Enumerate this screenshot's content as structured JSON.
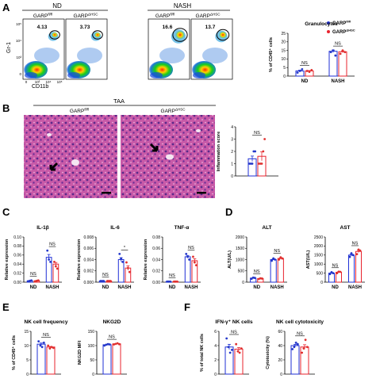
{
  "colors": {
    "blue": "#1f2fd6",
    "red": "#e8232e",
    "dot_blue": "#2438c9",
    "dot_red": "#e0312f"
  },
  "panels": {
    "A": "A",
    "B": "B",
    "C": "C",
    "D": "D",
    "E": "E",
    "F": "F"
  },
  "panelA": {
    "group_nd": "ND",
    "group_nash": "NASH",
    "col_fl": "GARP",
    "col_fl_sup": "fl/fl",
    "col_dhsc": "GARP",
    "col_dhsc_sup": "ΔHSC",
    "ylabel": "Gr-1",
    "xlabel": "CD11b",
    "yticks": [
      "10⁵",
      "10⁴",
      "10³",
      "0"
    ],
    "xticks": [
      "0",
      "10³",
      "10⁴",
      "10⁵"
    ],
    "gate_values": [
      "4.13",
      "3.73",
      "16.6",
      "13.7"
    ]
  },
  "panelB": {
    "title": "TAA",
    "col_fl": "GARP",
    "col_fl_sup": "fl/fl",
    "col_dhsc": "GARP",
    "col_dhsc_sup": "ΔHSC"
  },
  "legend": {
    "fl": "GARP",
    "fl_sup": "fl/fl",
    "dhsc": "GARP",
    "dhsc_sup": "ΔHSC"
  },
  "chart_data": [
    {
      "id": "granulocytes",
      "type": "bar",
      "title": "Granulocytes",
      "ylabel": "% of CD45⁺ cells",
      "ylim": [
        0,
        25
      ],
      "yticks": [
        0,
        5,
        10,
        15,
        20,
        25
      ],
      "categories": [
        "ND",
        "NASH"
      ],
      "series": [
        {
          "name": "GARP fl/fl",
          "values": [
            3,
            14.5
          ]
        },
        {
          "name": "GARP ΔHSC",
          "values": [
            3,
            14.2
          ]
        }
      ],
      "points": [
        [
          [
            2,
            3,
            4
          ],
          [
            3,
            2.5,
            3.5
          ]
        ],
        [
          [
            14,
            15,
            12
          ],
          [
            13,
            15,
            14
          ]
        ]
      ],
      "annotations": [
        "NS",
        "NS"
      ]
    },
    {
      "id": "inflammation",
      "type": "bar",
      "title": "",
      "ylabel": "Inflammation score",
      "ylim": [
        0,
        4
      ],
      "yticks": [
        0,
        1,
        2,
        3,
        4
      ],
      "categories": [
        ""
      ],
      "series": [
        {
          "name": "GARP fl/fl",
          "values": [
            1.4
          ]
        },
        {
          "name": "GARP ΔHSC",
          "values": [
            1.6
          ]
        }
      ],
      "points": [
        [
          [
            1,
            1,
            1,
            2,
            2
          ],
          [
            1,
            1,
            1,
            2,
            3
          ]
        ]
      ],
      "annotations": [
        "NS"
      ]
    },
    {
      "id": "il1b",
      "type": "bar",
      "title": "IL-1β",
      "ylabel": "Relative expression",
      "ylim": [
        0,
        0.1
      ],
      "yticks": [
        "0.00",
        "0.02",
        "0.04",
        "0.06",
        "0.08",
        "0.10"
      ],
      "categories": [
        "ND",
        "NASH"
      ],
      "series": [
        {
          "name": "GARP fl/fl",
          "values": [
            0.003,
            0.055
          ]
        },
        {
          "name": "GARP ΔHSC",
          "values": [
            0.003,
            0.04
          ]
        }
      ],
      "points": [
        [
          [
            0.002,
            0.003,
            0.004
          ],
          [
            0.002,
            0.003,
            0.004
          ]
        ],
        [
          [
            0.07,
            0.05,
            0.045
          ],
          [
            0.045,
            0.035,
            0.03
          ]
        ]
      ],
      "annotations": [
        "NS",
        "NS"
      ]
    },
    {
      "id": "il6",
      "type": "bar",
      "title": "IL-6",
      "ylabel": "Relative expression",
      "ylim": [
        0,
        0.008
      ],
      "yticks": [
        "0.000",
        "0.002",
        "0.004",
        "0.006",
        "0.008"
      ],
      "categories": [
        "ND",
        "NASH"
      ],
      "series": [
        {
          "name": "GARP fl/fl",
          "values": [
            0.0002,
            0.004
          ]
        },
        {
          "name": "GARP ΔHSC",
          "values": [
            0.0002,
            0.0025
          ]
        }
      ],
      "points": [
        [
          [
            0.0002,
            0.0002,
            0.0002
          ],
          [
            0.0002,
            0.0002,
            0.0002
          ]
        ],
        [
          [
            0.005,
            0.0042,
            0.0036
          ],
          [
            0.0035,
            0.0025,
            0.0018
          ]
        ]
      ],
      "annotations": [
        "NS",
        "*"
      ]
    },
    {
      "id": "tnfa",
      "type": "bar",
      "title": "TNF-α",
      "ylabel": "Relative expression",
      "ylim": [
        0,
        0.08
      ],
      "yticks": [
        "0.00",
        "0.02",
        "0.04",
        "0.06",
        "0.08"
      ],
      "categories": [
        "ND",
        "NASH"
      ],
      "series": [
        {
          "name": "GARP fl/fl",
          "values": [
            0.001,
            0.045
          ]
        },
        {
          "name": "GARP ΔHSC",
          "values": [
            0.001,
            0.038
          ]
        }
      ],
      "points": [
        [
          [
            0.001,
            0.001,
            0.001
          ],
          [
            0.001,
            0.001,
            0.001
          ]
        ],
        [
          [
            0.05,
            0.045,
            0.04
          ],
          [
            0.045,
            0.035,
            0.03
          ]
        ]
      ],
      "annotations": [
        "NS",
        "NS"
      ]
    },
    {
      "id": "alt",
      "type": "bar",
      "title": "ALT",
      "ylabel": "ALT(U/L)",
      "ylim": [
        0,
        2000
      ],
      "yticks": [
        0,
        500,
        1000,
        1500,
        2000
      ],
      "categories": [
        "ND",
        "NASH"
      ],
      "series": [
        {
          "name": "GARP fl/fl",
          "values": [
            180,
            1000
          ]
        },
        {
          "name": "GARP ΔHSC",
          "values": [
            160,
            1050
          ]
        }
      ],
      "points": [
        [
          [
            150,
            200,
            190
          ],
          [
            140,
            170,
            160
          ]
        ],
        [
          [
            950,
            1050,
            1000
          ],
          [
            1000,
            1100,
            1050
          ]
        ]
      ],
      "annotations": [
        "NS",
        "NS"
      ]
    },
    {
      "id": "ast",
      "type": "bar",
      "title": "AST",
      "ylabel": "AST(U/L)",
      "ylim": [
        0,
        2500
      ],
      "yticks": [
        0,
        500,
        1000,
        1500,
        2000,
        2500
      ],
      "categories": [
        "ND",
        "NASH"
      ],
      "series": [
        {
          "name": "GARP fl/fl",
          "values": [
            500,
            1500
          ]
        },
        {
          "name": "GARP ΔHSC",
          "values": [
            550,
            1700
          ]
        }
      ],
      "points": [
        [
          [
            450,
            550,
            500
          ],
          [
            500,
            580,
            570
          ]
        ],
        [
          [
            1400,
            1600,
            1500
          ],
          [
            1550,
            1800,
            1750
          ]
        ]
      ],
      "annotations": [
        "NS",
        "NS"
      ]
    },
    {
      "id": "nk_freq",
      "type": "bar",
      "title": "NK cell frequency",
      "ylabel": "% of CD45⁺ cells",
      "ylim": [
        0,
        15
      ],
      "yticks": [
        0,
        5,
        10,
        15
      ],
      "categories": [
        ""
      ],
      "series": [
        {
          "name": "GARP fl/fl",
          "values": [
            10.5
          ]
        },
        {
          "name": "GARP ΔHSC",
          "values": [
            9.5
          ]
        }
      ],
      "points": [
        [
          [
            11.5,
            10,
            9.5,
            11
          ],
          [
            10,
            9,
            9.5,
            9.2
          ]
        ]
      ],
      "annotations": [
        "NS"
      ]
    },
    {
      "id": "nkg2d",
      "type": "bar",
      "title": "NKG2D",
      "ylabel": "NKG2D MFI",
      "ylim": [
        0,
        150
      ],
      "yticks": [
        0,
        50,
        100,
        150
      ],
      "categories": [
        ""
      ],
      "series": [
        {
          "name": "GARP fl/fl",
          "values": [
            103
          ]
        },
        {
          "name": "GARP ΔHSC",
          "values": [
            106
          ]
        }
      ],
      "points": [
        [
          [
            100,
            103,
            105,
            104
          ],
          [
            104,
            106,
            108,
            105
          ]
        ]
      ],
      "annotations": [
        "NS"
      ]
    },
    {
      "id": "ifng",
      "type": "bar",
      "title": "IFN-γ⁺ NK cells",
      "ylabel": "% of total NK cells",
      "ylim": [
        0,
        6
      ],
      "yticks": [
        0,
        2,
        4,
        6
      ],
      "categories": [
        ""
      ],
      "series": [
        {
          "name": "GARP fl/fl",
          "values": [
            3.8
          ]
        },
        {
          "name": "GARP ΔHSC",
          "values": [
            3.5
          ]
        }
      ],
      "points": [
        [
          [
            5,
            3.8,
            3,
            3.4
          ],
          [
            4.2,
            3.2,
            3,
            3.6
          ]
        ]
      ],
      "annotations": [
        "NS"
      ]
    },
    {
      "id": "nk_cyto",
      "type": "bar",
      "title": "NK cell cytotoxicity",
      "ylabel": "Cytotoxicity (%)",
      "ylim": [
        0,
        60
      ],
      "yticks": [
        0,
        20,
        40,
        60
      ],
      "categories": [
        ""
      ],
      "series": [
        {
          "name": "GARP fl/fl",
          "values": [
            40
          ]
        },
        {
          "name": "GARP ΔHSC",
          "values": [
            38
          ]
        }
      ],
      "points": [
        [
          [
            35,
            38,
            44,
            42
          ],
          [
            30,
            36,
            48,
            38
          ]
        ]
      ],
      "annotations": [
        "NS"
      ]
    }
  ]
}
